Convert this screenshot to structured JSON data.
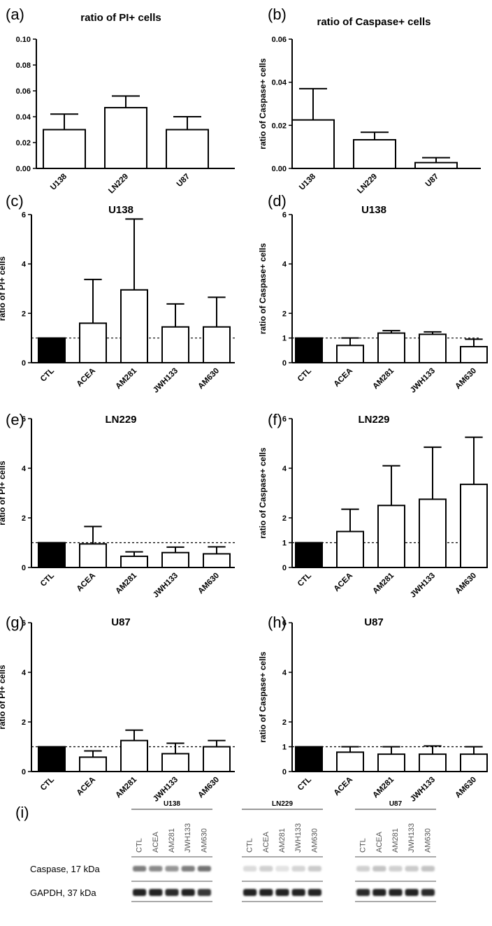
{
  "chart_data": [
    {
      "panel": "(a)",
      "type": "bar",
      "title": "ratio of PI+ cells",
      "ylabel": "",
      "categories": [
        "U138",
        "LN229",
        "U87"
      ],
      "values": [
        0.03,
        0.047,
        0.03
      ],
      "errors": [
        0.012,
        0.009,
        0.01
      ],
      "colors": [
        "#ffffff",
        "#ffffff",
        "#ffffff"
      ],
      "ylim": [
        0,
        0.1
      ],
      "yticks": [
        0.0,
        0.02,
        0.04,
        0.06,
        0.08,
        0.1
      ],
      "ytick_labels": [
        "0.00",
        "0.02",
        "0.04",
        "0.06",
        "0.08",
        "0.10"
      ],
      "reference_line": null
    },
    {
      "panel": "(b)",
      "type": "bar",
      "title": "ratio of Caspase+ cells",
      "ylabel": "ratio of Caspase+ cells",
      "categories": [
        "U138",
        "LN229",
        "U87"
      ],
      "values": [
        0.0225,
        0.0133,
        0.0027
      ],
      "errors": [
        0.0145,
        0.0035,
        0.0023
      ],
      "colors": [
        "#ffffff",
        "#ffffff",
        "#ffffff"
      ],
      "ylim": [
        0,
        0.06
      ],
      "yticks": [
        0.0,
        0.02,
        0.04,
        0.06
      ],
      "ytick_labels": [
        "0.00",
        "0.02",
        "0.04",
        "0.06"
      ],
      "reference_line": null
    },
    {
      "panel": "(c)",
      "type": "bar",
      "title": "U138",
      "ylabel": "ratio of PI+ cells",
      "categories": [
        "CTL",
        "ACEA",
        "AM281",
        "JWH133",
        "AM630"
      ],
      "values": [
        1.0,
        1.6,
        2.95,
        1.45,
        1.45
      ],
      "errors": [
        0,
        1.77,
        2.87,
        0.93,
        1.2
      ],
      "colors": [
        "#000000",
        "#ffffff",
        "#ffffff",
        "#ffffff",
        "#ffffff"
      ],
      "ylim": [
        0,
        6
      ],
      "yticks": [
        0,
        2,
        4,
        6
      ],
      "ytick_labels": [
        "0",
        "2",
        "4",
        "6"
      ],
      "reference_line": 1
    },
    {
      "panel": "(d)",
      "type": "bar",
      "title": "U138",
      "ylabel": "ratio of Caspase+ cells",
      "categories": [
        "CTL",
        "ACEA",
        "AM281",
        "JWH133",
        "AM630"
      ],
      "values": [
        1.0,
        0.7,
        1.2,
        1.15,
        0.65
      ],
      "errors": [
        0,
        0.3,
        0.1,
        0.1,
        0.3
      ],
      "colors": [
        "#000000",
        "#ffffff",
        "#ffffff",
        "#ffffff",
        "#ffffff"
      ],
      "ylim": [
        0,
        6
      ],
      "yticks": [
        0,
        1,
        2,
        4,
        6
      ],
      "ytick_labels": [
        "0",
        "1",
        "2",
        "4",
        "6"
      ],
      "reference_line": 1
    },
    {
      "panel": "(e)",
      "type": "bar",
      "title": "LN229",
      "ylabel": "ratio of PI+ cells",
      "categories": [
        "CTL",
        "ACEA",
        "AM281",
        "JWH133",
        "AM630"
      ],
      "values": [
        1.0,
        0.95,
        0.45,
        0.6,
        0.55
      ],
      "errors": [
        0,
        0.7,
        0.18,
        0.22,
        0.28
      ],
      "colors": [
        "#000000",
        "#ffffff",
        "#ffffff",
        "#ffffff",
        "#ffffff"
      ],
      "ylim": [
        0,
        6
      ],
      "yticks": [
        0,
        2,
        4,
        6
      ],
      "ytick_labels": [
        "0",
        "2",
        "4",
        "6"
      ],
      "reference_line": 1
    },
    {
      "panel": "(f)",
      "type": "bar",
      "title": "LN229",
      "ylabel": "ratio of Caspase+ cells",
      "categories": [
        "CTL",
        "ACEA",
        "AM281",
        "JWH133",
        "AM630"
      ],
      "values": [
        1.0,
        1.45,
        2.5,
        2.75,
        3.35
      ],
      "errors": [
        0,
        0.9,
        1.6,
        2.1,
        1.9
      ],
      "colors": [
        "#000000",
        "#ffffff",
        "#ffffff",
        "#ffffff",
        "#ffffff"
      ],
      "ylim": [
        0,
        6
      ],
      "yticks": [
        0,
        1,
        2,
        4,
        6
      ],
      "ytick_labels": [
        "0",
        "1",
        "2",
        "4",
        "6"
      ],
      "reference_line": 1
    },
    {
      "panel": "(g)",
      "type": "bar",
      "title": "U87",
      "ylabel": "ratio of PI+ cells",
      "categories": [
        "CTL",
        "ACEA",
        "AM281",
        "JWH133",
        "AM630"
      ],
      "values": [
        1.0,
        0.58,
        1.25,
        0.72,
        1.0
      ],
      "errors": [
        0,
        0.25,
        0.42,
        0.42,
        0.25
      ],
      "colors": [
        "#000000",
        "#ffffff",
        "#ffffff",
        "#ffffff",
        "#ffffff"
      ],
      "ylim": [
        0,
        6
      ],
      "yticks": [
        0,
        2,
        4,
        6
      ],
      "ytick_labels": [
        "0",
        "2",
        "4",
        "6"
      ],
      "reference_line": 1
    },
    {
      "panel": "(h)",
      "type": "bar",
      "title": "U87",
      "ylabel": "ratio of Caspase+ cells",
      "categories": [
        "CTL",
        "ACEA",
        "AM281",
        "JWH133",
        "AM630"
      ],
      "values": [
        1.0,
        0.78,
        0.7,
        0.7,
        0.7
      ],
      "errors": [
        0,
        0.22,
        0.3,
        0.33,
        0.3
      ],
      "colors": [
        "#000000",
        "#ffffff",
        "#ffffff",
        "#ffffff",
        "#ffffff"
      ],
      "ylim": [
        0,
        6
      ],
      "yticks": [
        0,
        1,
        2,
        4,
        6
      ],
      "ytick_labels": [
        "0",
        "1",
        "2",
        "4",
        "6"
      ],
      "reference_line": 1
    }
  ],
  "blot": {
    "panel": "(i)",
    "groups": [
      "U138",
      "LN229",
      "U87"
    ],
    "lanes": [
      "CTL",
      "ACEA",
      "AM281",
      "JWH133",
      "AM630"
    ],
    "rows": [
      {
        "label": "Caspase, 17 kDa",
        "intensity": [
          [
            0.55,
            0.5,
            0.45,
            0.55,
            0.6
          ],
          [
            0.15,
            0.2,
            0.12,
            0.18,
            0.22
          ],
          [
            0.2,
            0.25,
            0.2,
            0.22,
            0.25
          ]
        ]
      },
      {
        "label": "GAPDH, 37 kDa",
        "intensity": [
          [
            0.95,
            0.95,
            0.9,
            0.95,
            0.85
          ],
          [
            0.95,
            0.95,
            0.95,
            0.95,
            0.95
          ],
          [
            0.9,
            0.95,
            0.95,
            0.95,
            0.9
          ]
        ]
      }
    ]
  }
}
